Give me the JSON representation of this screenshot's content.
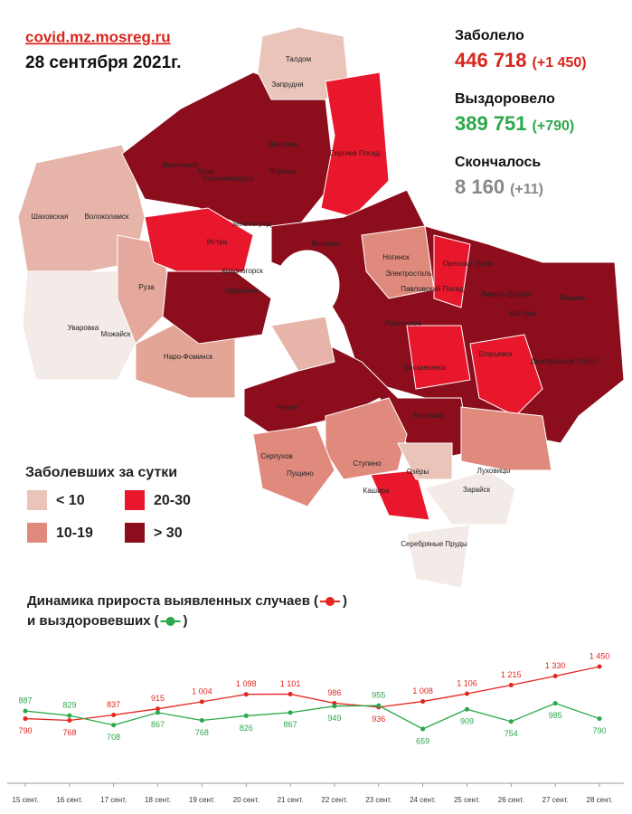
{
  "header": {
    "site": "covid.mz.mosreg.ru",
    "date": "28 сентября 2021г."
  },
  "stats": [
    {
      "label": "Заболело",
      "value": "446 718",
      "delta": "(+1 450)"
    },
    {
      "label": "Выздоровело",
      "value": "389 751",
      "delta": "(+790)"
    },
    {
      "label": "Скончалось",
      "value": "8 160",
      "delta": "(+11)"
    }
  ],
  "map_legend": {
    "title": "Заболевших за сутки",
    "items": [
      "< 10",
      "10-19",
      "20-30",
      "> 30"
    ]
  },
  "map_labels": [
    "Талдом",
    "Запрудня",
    "Дмитров",
    "Сергиев Посад",
    "Клин",
    "Высоковск",
    "Солнечногорск",
    "Яхрома",
    "Шаховская",
    "Волоколамск",
    "Истра",
    "Зеленоград",
    "Мытищи",
    "Руза",
    "Красногорск",
    "Одинцово",
    "Ногинск",
    "Электросталь",
    "Павловский Посад",
    "Орехово-Зуево",
    "Ликино-Дулёво",
    "Шатура",
    "Рошаль",
    "Уваровка",
    "Можайск",
    "Наро-Фоминск",
    "Раменское",
    "Воскресенск",
    "Егорьевск",
    "Дмитровский Погост",
    "Чехов",
    "Коломна",
    "Серпухов",
    "Пущино",
    "Ступино",
    "Озёры",
    "Луховицы",
    "Кашира",
    "Зарайск",
    "Серебряные Пруды"
  ],
  "chart_data": {
    "type": "line",
    "legend_brackets": [
      "(",
      ")"
    ],
    "categories": [
      "15 сент.",
      "16 сент.",
      "17 сент.",
      "18 сент.",
      "19 сент.",
      "20 сент.",
      "21 сент.",
      "22 сент.",
      "23 сент.",
      "24 сент.",
      "25 сент.",
      "26 сент.",
      "27 сент.",
      "28 сент."
    ],
    "series": [
      {
        "name": "Динамика прироста выявленных случаев",
        "color": "#e32620",
        "values": [
          790,
          768,
          837,
          915,
          1004,
          1098,
          1101,
          986,
          936,
          1008,
          1106,
          1215,
          1330,
          1450
        ],
        "value_labels": [
          "790",
          "768",
          "837",
          "915",
          "1 004",
          "1 098",
          "1 101",
          "986",
          "936",
          "1 008",
          "1 106",
          "1 215",
          "1 330",
          "1 450"
        ]
      },
      {
        "name": "и выздоровевших",
        "color": "#2aa84a",
        "values": [
          887,
          829,
          708,
          867,
          768,
          826,
          867,
          949,
          955,
          659,
          909,
          754,
          985,
          790
        ]
      }
    ]
  }
}
